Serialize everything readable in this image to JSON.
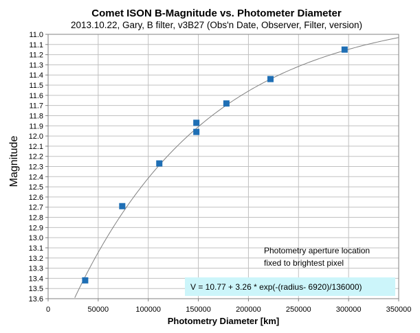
{
  "chart_data": {
    "type": "scatter",
    "title": "Comet ISON B-Magnitude vs. Photometer Diameter",
    "subtitle": "2013.10.22,  Gary, B filter, v3B27 (Obs'n Date, Observer, Filter, version)",
    "xlabel": "Photometry Diameter  [km]",
    "ylabel": "Magnitude",
    "xlim": [
      0,
      350000
    ],
    "ylim": [
      11.0,
      13.6
    ],
    "y_reversed": true,
    "x_ticks": [
      0,
      50000,
      100000,
      150000,
      200000,
      250000,
      300000,
      350000
    ],
    "y_ticks": [
      "11.0",
      "11.1",
      "11.2",
      "11.3",
      "11.4",
      "11.5",
      "11.6",
      "11.7",
      "11.8",
      "11.9",
      "12.0",
      "12.1",
      "12.2",
      "12.3",
      "12.4",
      "12.5",
      "12.6",
      "12.7",
      "12.8",
      "12.9",
      "13.0",
      "13.1",
      "13.2",
      "13.3",
      "13.4",
      "13.5",
      "13.6"
    ],
    "grid": true,
    "series": [
      {
        "marker": "square",
        "color": "#1F6FB5",
        "points": [
          {
            "x": 37000,
            "y": 13.42
          },
          {
            "x": 74000,
            "y": 12.69
          },
          {
            "x": 111000,
            "y": 12.27
          },
          {
            "x": 148000,
            "y": 11.87
          },
          {
            "x": 148000,
            "y": 11.96
          },
          {
            "x": 178000,
            "y": 11.68
          },
          {
            "x": 222000,
            "y": 11.44
          },
          {
            "x": 296000,
            "y": 11.15
          }
        ]
      }
    ],
    "fit": {
      "color": "#808080",
      "V0": 10.77,
      "A": 3.26,
      "r0": 6920,
      "scale": 136000,
      "x_start": 20000,
      "x_end": 350000
    },
    "annotations": {
      "note_line1": "Photometry aperture location",
      "note_line2": "fixed to brightest pixel",
      "equation": "V = 10.77 + 3.26 * exp(-(radius- 6920)/136000)",
      "equation_bg": "#CCF5FA"
    },
    "colors": {
      "grid": "#C0C0C0",
      "axis": "#808080",
      "plot_border": "#808080"
    }
  }
}
